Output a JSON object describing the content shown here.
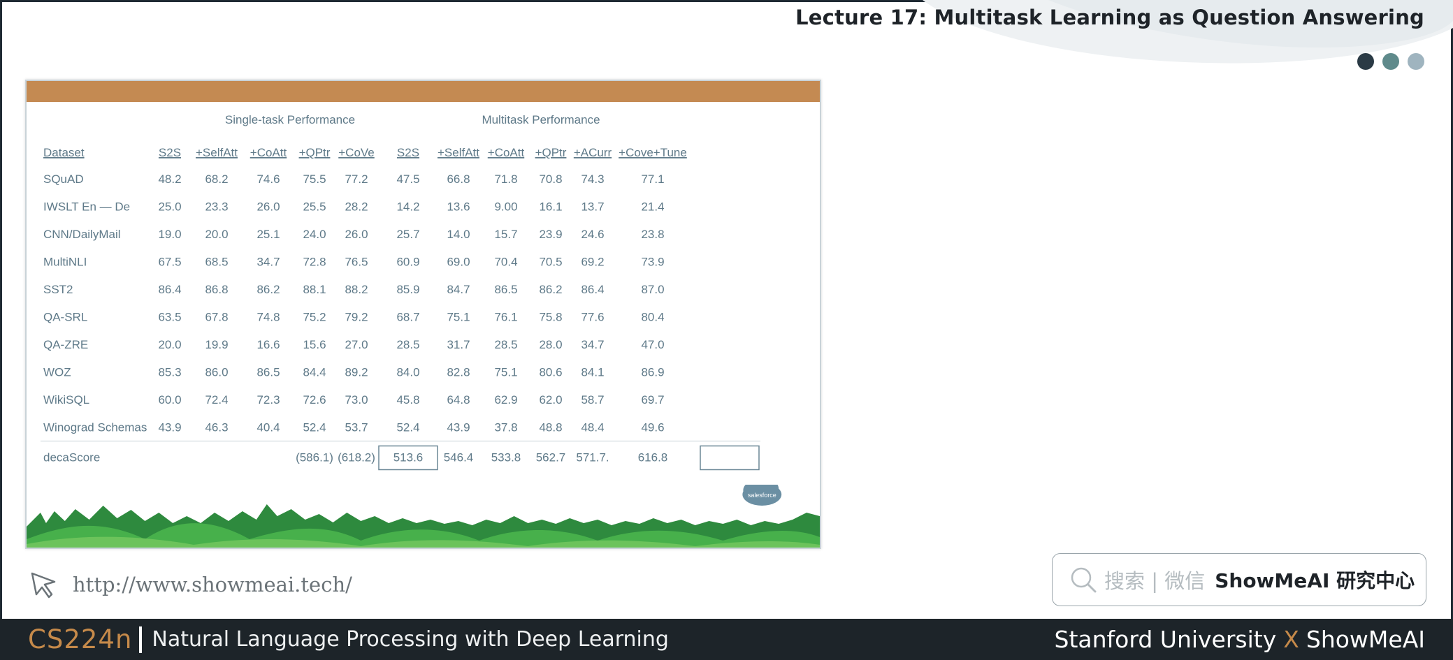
{
  "header": {
    "title": "Lecture 17: Multitask Learning as Question Answering",
    "dots": [
      {
        "color": "#2a3a45"
      },
      {
        "color": "#5f8a8b"
      },
      {
        "color": "#9fb4bf"
      }
    ]
  },
  "slide": {
    "bar_color": "#c48a52",
    "group_headers": {
      "single": "Single-task Performance",
      "multi": "Multitask Performance"
    },
    "columns": [
      "Dataset",
      "S2S",
      "+SelfAtt",
      "+CoAtt",
      "+QPtr",
      "+CoVe",
      "S2S",
      "+SelfAtt",
      "+CoAtt",
      "+QPtr",
      "+ACurr",
      "+Cove+Tune"
    ],
    "rows": [
      {
        "dataset": "SQuAD",
        "values": [
          "48.2",
          "68.2",
          "74.6",
          "75.5",
          "77.2",
          "47.5",
          "66.8",
          "71.8",
          "70.8",
          "74.3",
          "77.1"
        ]
      },
      {
        "dataset": "IWSLT En — De",
        "values": [
          "25.0",
          "23.3",
          "26.0",
          "25.5",
          "28.2",
          "14.2",
          "13.6",
          "9.00",
          "16.1",
          "13.7",
          "21.4"
        ]
      },
      {
        "dataset": "CNN/DailyMail",
        "values": [
          "19.0",
          "20.0",
          "25.1",
          "24.0",
          "26.0",
          "25.7",
          "14.0",
          "15.7",
          "23.9",
          "24.6",
          "23.8"
        ]
      },
      {
        "dataset": "MultiNLI",
        "values": [
          "67.5",
          "68.5",
          "34.7",
          "72.8",
          "76.5",
          "60.9",
          "69.0",
          "70.4",
          "70.5",
          "69.2",
          "73.9"
        ]
      },
      {
        "dataset": "SST2",
        "values": [
          "86.4",
          "86.8",
          "86.2",
          "88.1",
          "88.2",
          "85.9",
          "84.7",
          "86.5",
          "86.2",
          "86.4",
          "87.0"
        ]
      },
      {
        "dataset": "QA-SRL",
        "values": [
          "63.5",
          "67.8",
          "74.8",
          "75.2",
          "79.2",
          "68.7",
          "75.1",
          "76.1",
          "75.8",
          "77.6",
          "80.4"
        ]
      },
      {
        "dataset": "QA-ZRE",
        "values": [
          "20.0",
          "19.9",
          "16.6",
          "15.6",
          "27.0",
          "28.5",
          "31.7",
          "28.5",
          "28.0",
          "34.7",
          "47.0"
        ]
      },
      {
        "dataset": "WOZ",
        "values": [
          "85.3",
          "86.0",
          "86.5",
          "84.4",
          "89.2",
          "84.0",
          "82.8",
          "75.1",
          "80.6",
          "84.1",
          "86.9"
        ]
      },
      {
        "dataset": "WikiSQL",
        "values": [
          "60.0",
          "72.4",
          "72.3",
          "72.6",
          "73.0",
          "45.8",
          "64.8",
          "62.9",
          "62.0",
          "58.7",
          "69.7"
        ]
      },
      {
        "dataset": "Winograd Schemas",
        "values": [
          "43.9",
          "46.3",
          "40.4",
          "52.4",
          "53.7",
          "52.4",
          "43.9",
          "37.8",
          "48.8",
          "48.4",
          "49.6"
        ]
      }
    ],
    "deca": {
      "label": "decaScore",
      "values": [
        "",
        "",
        "",
        "(586.1)",
        "(618.2)",
        "513.6",
        "546.4",
        "533.8",
        "562.7",
        "571.7.",
        "616.8"
      ]
    },
    "logo_text": "salesforce"
  },
  "url": "http://www.showmeai.tech/",
  "search": {
    "prefix": "搜索 | 微信",
    "brand": "ShowMeAI 研究中心"
  },
  "footer": {
    "course_code": "CS224n",
    "course_name": "Natural Language Processing with Deep Learning",
    "right_left": "Stanford University",
    "right_x": "X",
    "right_right": "ShowMeAI"
  }
}
